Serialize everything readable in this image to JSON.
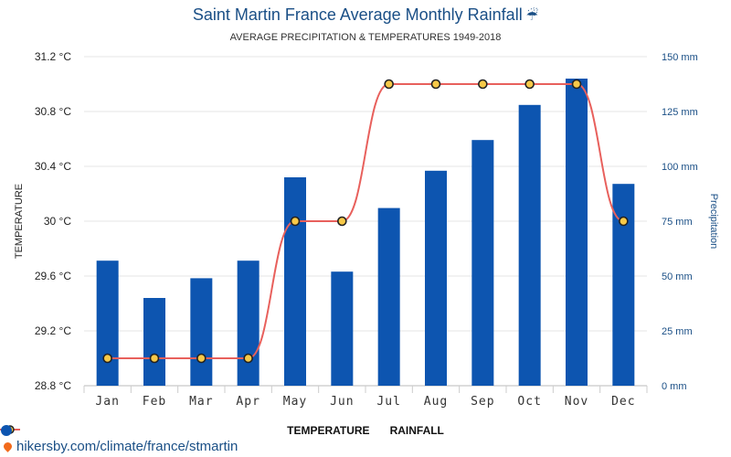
{
  "chart_data": {
    "type": "bar+line",
    "title": "Saint Martin France Average Monthly Rainfall",
    "subtitle": "AVERAGE PRECIPITATION & TEMPERATURES 1949-2018",
    "categories": [
      "Jan",
      "Feb",
      "Mar",
      "Apr",
      "May",
      "Jun",
      "Jul",
      "Aug",
      "Sep",
      "Oct",
      "Nov",
      "Dec"
    ],
    "series": [
      {
        "name": "TEMPERATURE",
        "type": "line",
        "axis": "left",
        "color": "#e8605c",
        "values": [
          29,
          29,
          29,
          29,
          30,
          30,
          31,
          31,
          31,
          31,
          31,
          30
        ]
      },
      {
        "name": "RAINFALL",
        "type": "bar",
        "axis": "right",
        "color": "#0d55b0",
        "values": [
          57,
          40,
          49,
          57,
          95,
          52,
          81,
          98,
          112,
          128,
          140,
          92
        ]
      }
    ],
    "ylabel_left": "TEMPERATURE",
    "ylabel_right": "Precipitation",
    "yticks_left": [
      "31.2 °C",
      "30.8 °C",
      "30.4 °C",
      "30 °C",
      "29.6 °C",
      "29.2 °C",
      "28.8 °C"
    ],
    "yticks_right": [
      "150 mm",
      "125 mm",
      "100 mm",
      "75 mm",
      "50 mm",
      "25 mm",
      "0 mm"
    ],
    "ylim_left": [
      28.8,
      31.2
    ],
    "ylim_right": [
      0,
      150
    ],
    "grid": true,
    "legend_position": "bottom-center"
  },
  "footer": {
    "text": "hikersby.com/climate/france/stmartin"
  },
  "colors": {
    "bar": "#0d55b0",
    "line": "#e8605c",
    "marker_fill": "#f7c948",
    "marker_stroke": "#222222",
    "title": "#1a4f86",
    "right_axis": "#1a4f86"
  }
}
